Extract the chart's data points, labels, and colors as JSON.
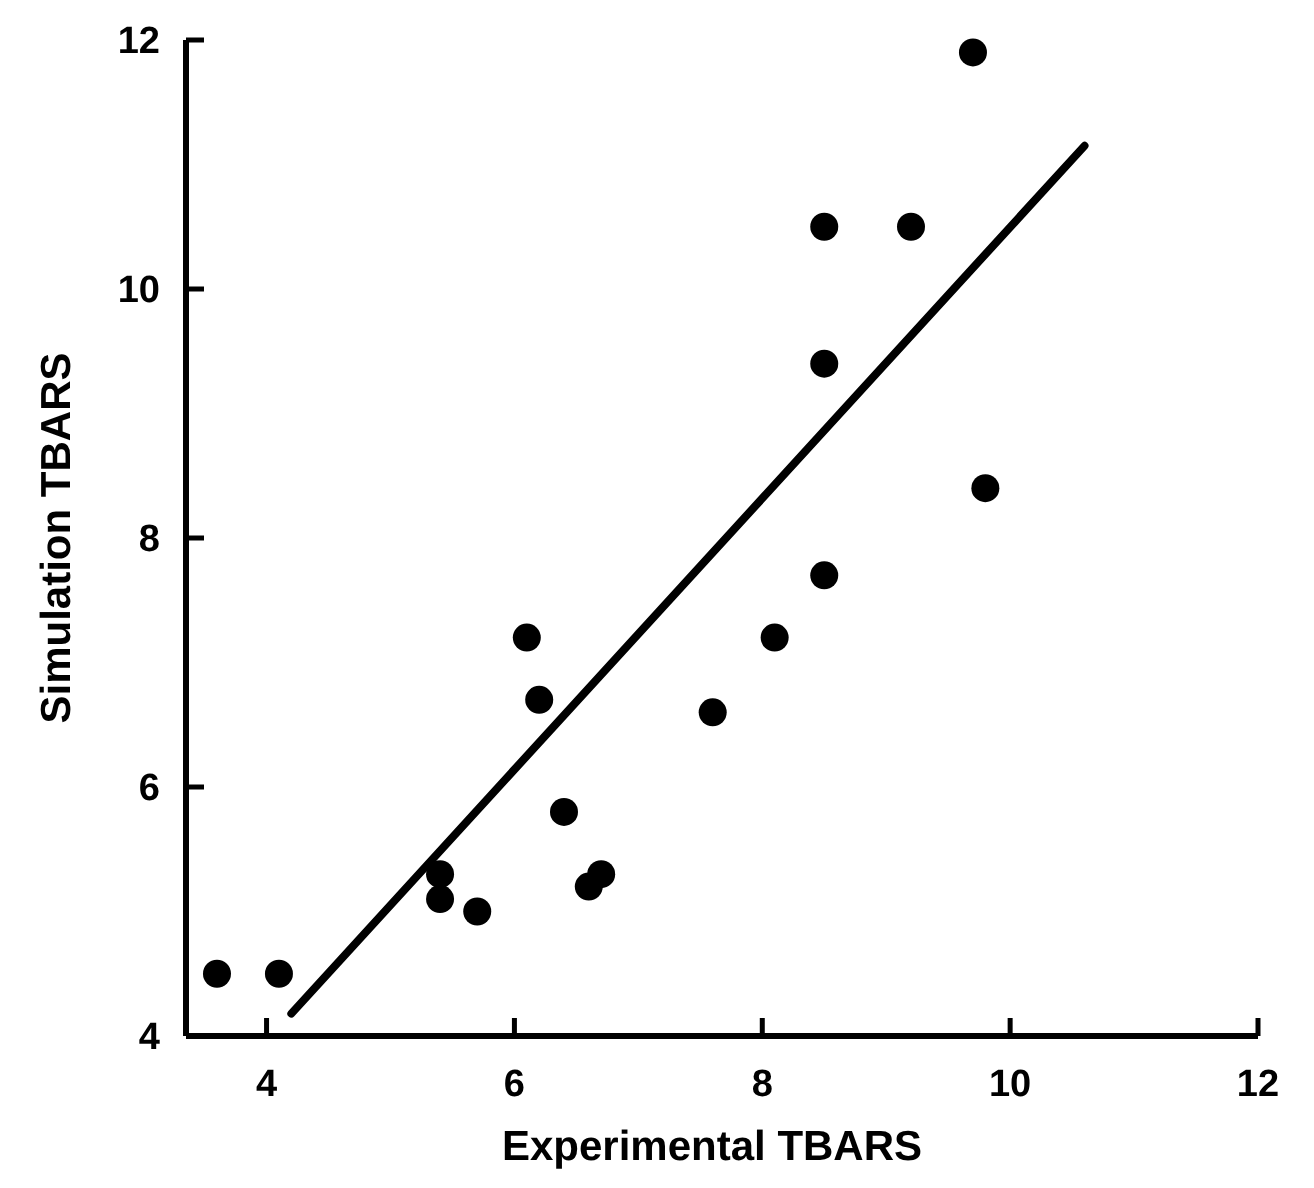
{
  "chart_data": {
    "type": "scatter",
    "xlabel": "Experimental TBARS",
    "ylabel": "Simulation TBARS",
    "xlim": [
      3.35,
      12
    ],
    "ylim": [
      4,
      12
    ],
    "xticks": [
      4,
      6,
      8,
      10,
      12
    ],
    "yticks": [
      4,
      6,
      8,
      10,
      12
    ],
    "grid": false,
    "marker": "circle",
    "series": [
      {
        "color": "#000000",
        "x": [
          3.6,
          4.1,
          5.4,
          5.4,
          5.7,
          6.4,
          6.6,
          6.7,
          6.1,
          6.2,
          7.6,
          8.1,
          8.5,
          8.5,
          8.5,
          9.2,
          9.7,
          9.8
        ],
        "values": [
          4.5,
          4.5,
          5.3,
          5.1,
          5.0,
          5.8,
          5.2,
          5.3,
          7.2,
          6.7,
          6.6,
          7.2,
          7.7,
          9.4,
          10.5,
          10.5,
          11.9,
          8.4
        ]
      },
      {
        "type": "line",
        "color": "#000000",
        "x": [
          4.2,
          10.6
        ],
        "values": [
          4.18,
          11.15
        ],
        "marker": "none",
        "line_style": "solid"
      }
    ]
  }
}
